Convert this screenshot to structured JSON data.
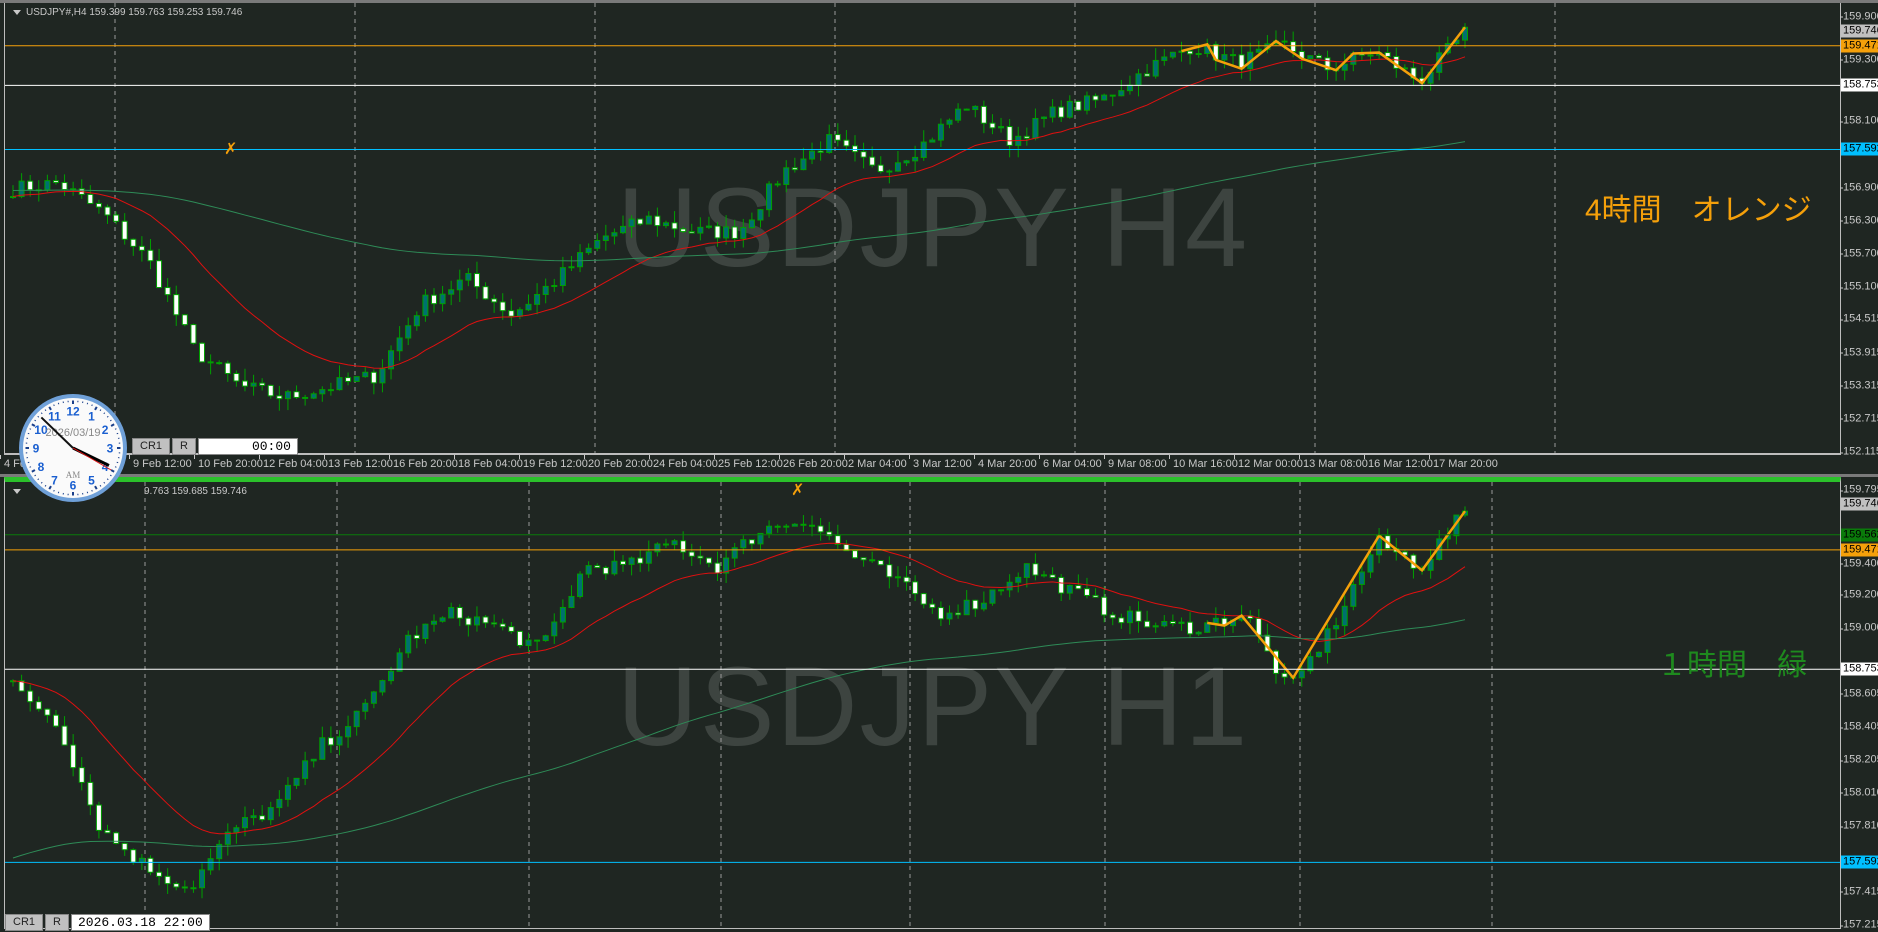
{
  "top": {
    "header": "USDJPY#,H4  159.399 159.763 159.253 159.746",
    "watermark": "USDJPY H4",
    "note": "4時間　オレンジ",
    "note_color": "#f5a00a",
    "axis_ticks": [
      "159.900",
      "159.300",
      "158.100",
      "156.900",
      "156.300",
      "155.700",
      "155.100",
      "154.515",
      "153.915",
      "153.315",
      "152.715",
      "152.115"
    ],
    "axis_tick_values": [
      159.9,
      159.3,
      158.1,
      156.9,
      156.3,
      155.7,
      155.1,
      154.515,
      153.915,
      153.315,
      152.715,
      152.115
    ],
    "price_range": [
      152.115,
      159.9
    ],
    "price_boxes": [
      {
        "label": "159.746",
        "value": 159.746,
        "color": "#c0c0c0",
        "line": false
      },
      {
        "label": "159.471",
        "value": 159.471,
        "color": "#f5a00a",
        "line": true
      },
      {
        "label": "158.753",
        "value": 158.753,
        "color": "#ffffff",
        "line": true
      },
      {
        "label": "157.592",
        "value": 157.592,
        "color": "#00bfff",
        "line": true
      }
    ],
    "time_labels": [
      "4 Feb",
      "9 Feb 12:00",
      "10 Feb 20:00",
      "12 Feb 04:00",
      "13 Feb 12:00",
      "16 Feb 20:00",
      "18 Feb 04:00",
      "19 Feb 12:00",
      "20 Feb 20:00",
      "24 Feb 04:00",
      "25 Feb 12:00",
      "26 Feb 20:00",
      "2 Mar 04:00",
      "3 Mar 12:00",
      "4 Mar 20:00",
      "6 Mar 04:00",
      "9 Mar 08:00",
      "10 Mar 16:00",
      "12 Mar 00:00",
      "13 Mar 08:00",
      "16 Mar 12:00",
      "17 Mar 20:00"
    ],
    "cr_label": "CR1",
    "r_label": "R",
    "cursor_time": "00:00",
    "price_path": [
      156.88,
      156.99,
      156.44,
      155.57,
      153.96,
      153.31,
      153.1,
      153.3,
      153.5,
      154.8,
      155.25,
      154.6,
      155.25,
      156.0,
      156.33,
      156.1,
      156.1,
      157.2,
      157.75,
      157.2,
      157.64,
      158.4,
      157.75,
      158.29,
      158.5,
      159.05,
      159.48,
      159.16,
      159.48,
      159.05,
      159.37,
      158.83,
      159.7
    ]
  },
  "bottom": {
    "header": "9.763 159.685 159.746",
    "watermark": "USDJPY H1",
    "note": "１時間　緑",
    "note_color": "#1e8a1e",
    "axis_ticks": [
      "159.795",
      "159.400",
      "159.200",
      "159.000",
      "158.605",
      "158.405",
      "158.205",
      "158.010",
      "157.810",
      "157.415",
      "157.215"
    ],
    "axis_tick_values": [
      159.795,
      159.4,
      159.2,
      159.0,
      158.605,
      158.405,
      158.205,
      158.01,
      157.81,
      157.415,
      157.215
    ],
    "price_range": [
      157.215,
      159.795
    ],
    "price_boxes": [
      {
        "label": "159.746",
        "value": 159.746,
        "color": "#c0c0c0",
        "line": false
      },
      {
        "label": "159.562",
        "value": 159.562,
        "color": "#0a7a0a",
        "line": true
      },
      {
        "label": "159.471",
        "value": 159.471,
        "color": "#f5a00a",
        "line": true
      },
      {
        "label": "158.753",
        "value": 158.753,
        "color": "#ffffff",
        "line": true
      },
      {
        "label": "157.592",
        "value": 157.592,
        "color": "#00bfff",
        "line": true
      }
    ],
    "cr_label": "CR1",
    "r_label": "R",
    "cursor_time": "2026.03.18 22:00",
    "price_path": [
      158.65,
      158.44,
      157.79,
      157.57,
      157.43,
      157.79,
      157.93,
      158.29,
      158.51,
      158.94,
      159.09,
      159.01,
      158.87,
      159.37,
      159.37,
      159.52,
      159.37,
      159.59,
      159.66,
      159.45,
      159.3,
      159.09,
      159.16,
      159.37,
      159.23,
      159.09,
      159.01,
      159.01,
      159.09,
      158.62,
      159.01,
      159.52,
      159.37,
      159.7
    ]
  },
  "clock": {
    "date": "2026/03/19",
    "ampm": "AM",
    "numbers": [
      "12",
      "1",
      "2",
      "3",
      "4",
      "5",
      "6",
      "7",
      "8",
      "9",
      "10",
      "11"
    ],
    "hour": 3,
    "minute": 52,
    "second": 20
  },
  "colors": {
    "background": "#1f2622",
    "bull": "#007070",
    "bear": "#ffffff",
    "candle_border": "#00a000",
    "ma_fast": "#e01010",
    "ma_slow": "#2e8b57",
    "zigzag": "#f5a00a"
  }
}
